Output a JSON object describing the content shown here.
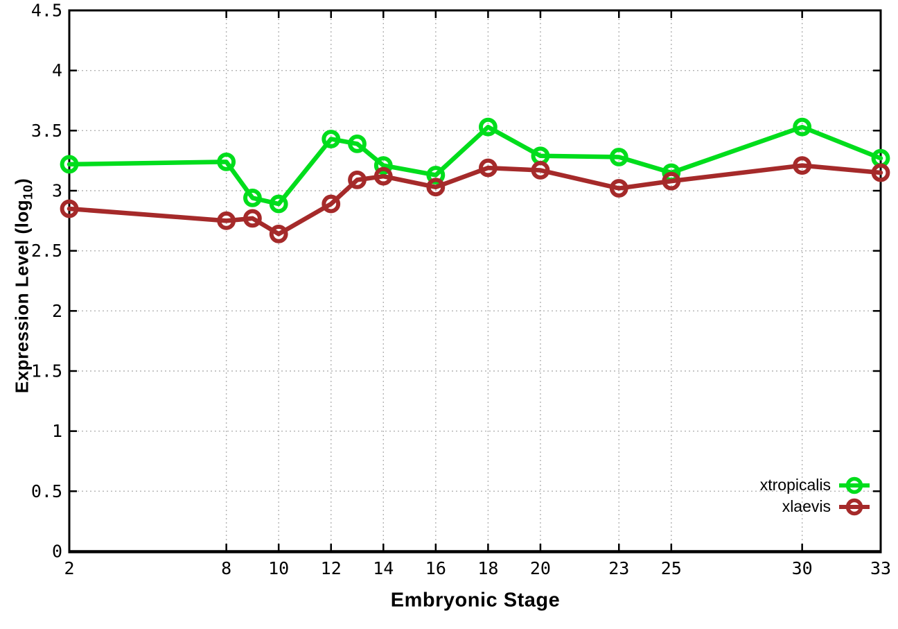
{
  "chart_data": {
    "type": "line",
    "title": "",
    "xlabel": "Embryonic Stage",
    "ylabel": {
      "pre": "Expression Level (log",
      "sub": "10",
      "post": ")"
    },
    "xlim": [
      2,
      33
    ],
    "ylim": [
      0,
      4.5
    ],
    "y_tick_step": 0.5,
    "x_ticks": [
      2,
      8,
      10,
      12,
      14,
      16,
      18,
      20,
      23,
      25,
      30,
      33
    ],
    "grid": true,
    "legend_position": "inside-bottom-right",
    "x": [
      2,
      8,
      9,
      10,
      12,
      13,
      14,
      16,
      18,
      20,
      23,
      25,
      30,
      33
    ],
    "series": [
      {
        "name": "xtropicalis",
        "color": "#00dd1c",
        "marker": "open-circle",
        "values": [
          3.22,
          3.24,
          2.94,
          2.89,
          3.43,
          3.39,
          3.21,
          3.13,
          3.53,
          3.29,
          3.28,
          3.15,
          3.53,
          3.27
        ]
      },
      {
        "name": "xlaevis",
        "color": "#a52a2a",
        "marker": "open-circle",
        "values": [
          2.85,
          2.75,
          2.77,
          2.64,
          2.89,
          3.09,
          3.12,
          3.03,
          3.19,
          3.17,
          3.02,
          3.08,
          3.21,
          3.15
        ]
      }
    ],
    "style": {
      "grid_color": "#b3b3b3",
      "axis_color": "#000000",
      "background": "#ffffff"
    }
  }
}
